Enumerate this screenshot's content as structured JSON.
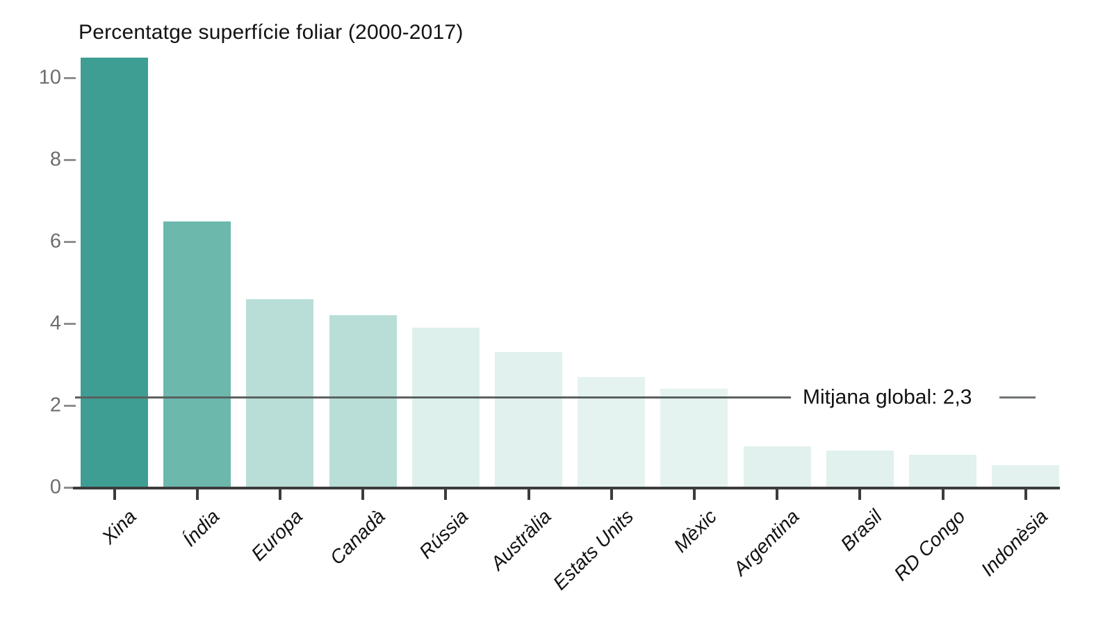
{
  "chart_data": {
    "type": "bar",
    "title": "Percentatge superfície foliar (2000-2017)",
    "categories": [
      "Xina",
      "Índia",
      "Europa",
      "Canadà",
      "Rússia",
      "Austràlia",
      "Estats Units",
      "Mèxic",
      "Argentina",
      "Brasil",
      "RD Congo",
      "Indonèsia"
    ],
    "values": [
      10.5,
      6.5,
      4.6,
      4.2,
      3.9,
      3.3,
      2.7,
      2.4,
      1.0,
      0.9,
      0.8,
      0.55
    ],
    "bar_colors": [
      "#3f9e94",
      "#6cb8ad",
      "#b8ded7",
      "#b8ded7",
      "#def0ec",
      "#e0f1ee",
      "#e4f3f0",
      "#e4f3f0",
      "#e0f1ee",
      "#e0f1ee",
      "#e0f1ee",
      "#e3f2ef"
    ],
    "yticks": [
      0,
      2,
      4,
      6,
      8,
      10
    ],
    "ylim": [
      0,
      10.6
    ],
    "grid": false,
    "xlabel": "",
    "ylabel": "",
    "legend": "none",
    "reference_line": {
      "value": 2.3,
      "label": "Mitjana global: 2,3",
      "line_position": 2.2,
      "color": "#5a615f"
    }
  },
  "colors": {
    "background": "#ffffff",
    "axis": "#3c3c3c",
    "ytick_label": "#6d6d6d",
    "xtick_label": "#121212",
    "title": "#121212"
  }
}
